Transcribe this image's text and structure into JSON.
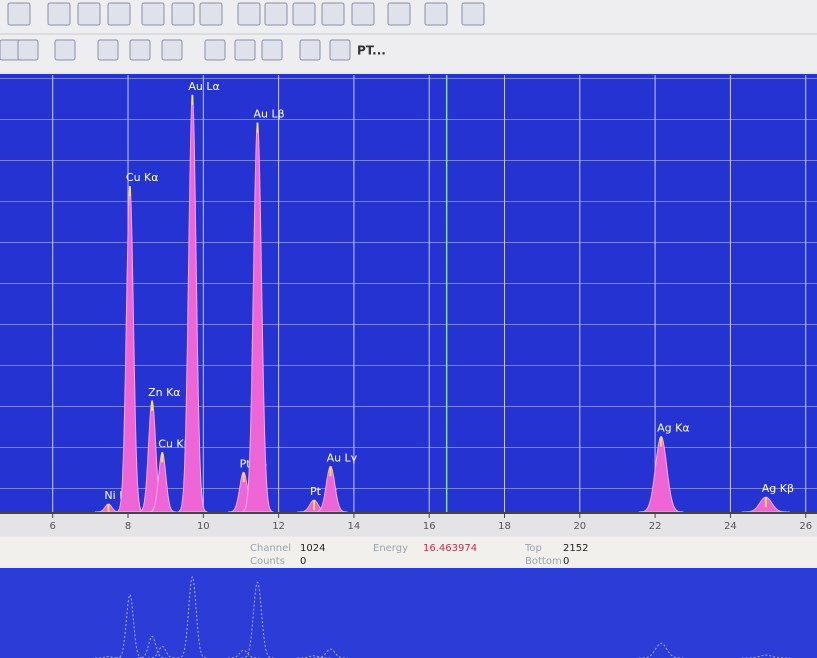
{
  "chart_data": {
    "type": "spectrum",
    "x": [
      7.48,
      8.05,
      8.64,
      8.91,
      9.71,
      11.07,
      11.44,
      12.94,
      13.38,
      22.16,
      24.94
    ],
    "values": [
      40,
      1640,
      560,
      300,
      2100,
      200,
      1960,
      60,
      230,
      380,
      75
    ],
    "labels": [
      "Ni Kα",
      "Cu Kα",
      "Zn Kα",
      "Cu Kβ",
      "Au Lα",
      "Pt Lβ",
      "Au Lβ",
      "Pt Lγ",
      "Au Lγ",
      "Ag Kα",
      "Ag Kβ"
    ],
    "color": "#ee66d6",
    "xlim": [
      4.6,
      26.3
    ],
    "xticks": [
      6,
      8,
      10,
      12,
      14,
      16,
      18,
      20,
      22,
      24,
      26
    ],
    "ylim": [
      0,
      2200
    ],
    "grid": true
  },
  "status": {
    "channel_label": "Channel",
    "channel": 1024,
    "counts_label": "Counts",
    "counts": 0,
    "energy_label": "Energy",
    "energy": 16.463974,
    "top_label": "Top",
    "top": 2152,
    "bottom_label": "Bottom",
    "bottom": 0
  },
  "toolbar": {
    "pt_button": "PT..."
  }
}
